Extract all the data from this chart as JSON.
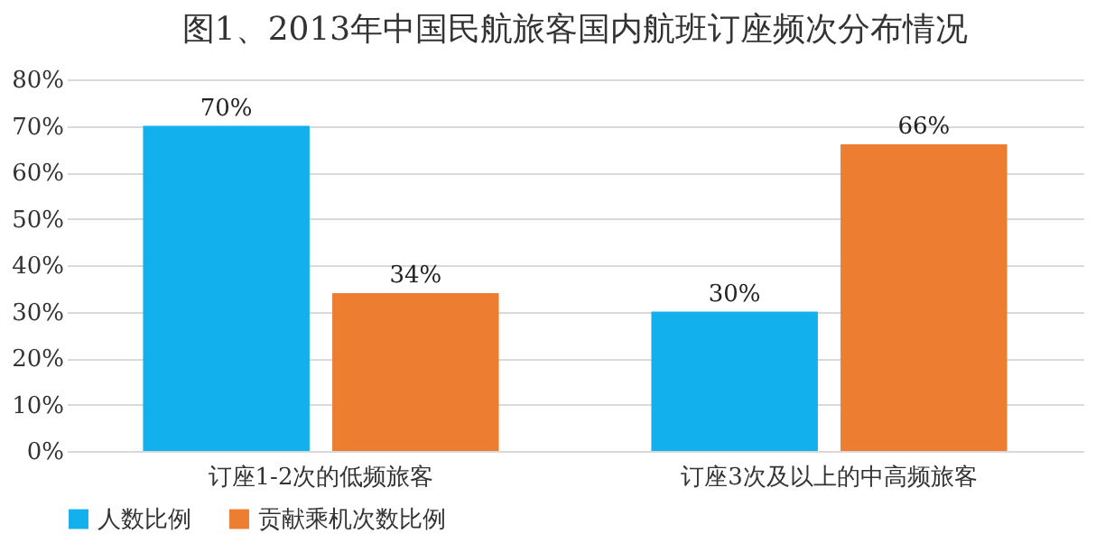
{
  "chart_data": {
    "type": "bar",
    "title": "图1、2013年中国民航旅客国内航班订座频次分布情况",
    "categories": [
      "订座1-2次的低频旅客",
      "订座3次及以上的中高频旅客"
    ],
    "series": [
      {
        "name": "人数比例",
        "color": "#12b0ec",
        "values": [
          70,
          30
        ],
        "value_labels": [
          "70%",
          "30%"
        ]
      },
      {
        "name": "贡献乘机次数比例",
        "color": "#ed7d31",
        "values": [
          34,
          66
        ],
        "value_labels": [
          "34%",
          "66%"
        ]
      }
    ],
    "ylim": [
      0,
      80
    ],
    "yticks": [
      {
        "value": 0,
        "label": "0%"
      },
      {
        "value": 10,
        "label": "10%"
      },
      {
        "value": 20,
        "label": "20%"
      },
      {
        "value": 30,
        "label": "30%"
      },
      {
        "value": 40,
        "label": "40%"
      },
      {
        "value": 50,
        "label": "50%"
      },
      {
        "value": 60,
        "label": "60%"
      },
      {
        "value": 70,
        "label": "70%"
      },
      {
        "value": 80,
        "label": "80%"
      }
    ],
    "grid": "y",
    "legend": "bottom"
  }
}
